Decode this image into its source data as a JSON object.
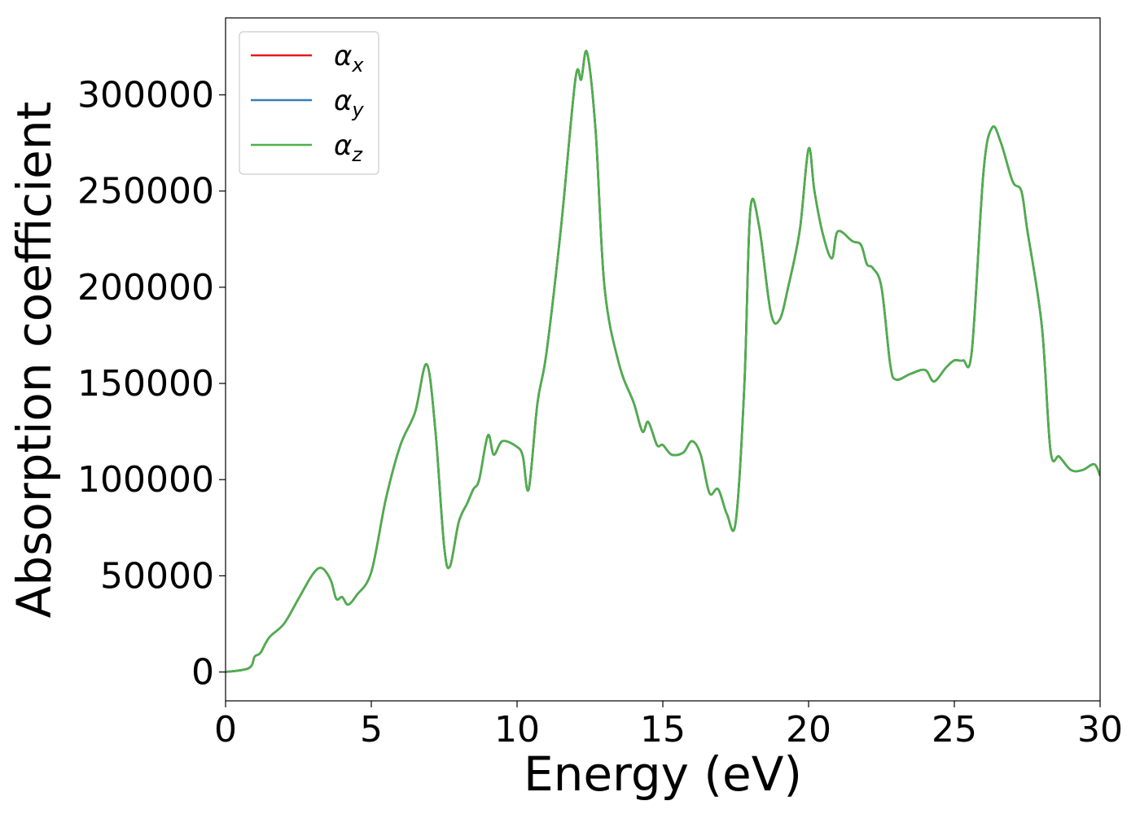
{
  "chart_data": {
    "type": "line",
    "xlabel": "Energy (eV)",
    "ylabel": "Absorption coefficient",
    "xlim": [
      0,
      30
    ],
    "ylim": [
      -15000,
      340000
    ],
    "x_ticks": [
      0,
      5,
      10,
      15,
      20,
      25,
      30
    ],
    "y_ticks": [
      0,
      50000,
      100000,
      150000,
      200000,
      250000,
      300000
    ],
    "x_tick_labels": [
      "0",
      "5",
      "10",
      "15",
      "20",
      "25",
      "30"
    ],
    "y_tick_labels": [
      "0",
      "50000",
      "100000",
      "150000",
      "200000",
      "250000",
      "300000"
    ],
    "grid": false,
    "legend_position": "top-left",
    "x": [
      0,
      0.8,
      1.0,
      1.2,
      1.5,
      2.0,
      2.5,
      3.0,
      3.3,
      3.6,
      3.8,
      4.0,
      4.2,
      4.5,
      5.0,
      5.5,
      6.0,
      6.5,
      6.9,
      7.2,
      7.5,
      7.7,
      8.0,
      8.3,
      8.5,
      8.7,
      9.0,
      9.2,
      9.5,
      10.0,
      10.2,
      10.4,
      10.7,
      11.0,
      11.5,
      12.0,
      12.2,
      12.4,
      12.7,
      13.0,
      13.5,
      14.0,
      14.3,
      14.5,
      14.8,
      15.0,
      15.3,
      15.7,
      16.0,
      16.3,
      16.6,
      16.9,
      17.2,
      17.5,
      17.8,
      18.0,
      18.3,
      18.7,
      19.0,
      19.3,
      19.7,
      20.0,
      20.2,
      20.5,
      20.8,
      21.0,
      21.5,
      21.8,
      22.0,
      22.2,
      22.5,
      22.8,
      23.0,
      23.5,
      24.0,
      24.3,
      24.7,
      25.0,
      25.3,
      25.6,
      26.0,
      26.3,
      26.6,
      27.0,
      27.3,
      27.5,
      28.0,
      28.3,
      28.6,
      29.0,
      29.4,
      29.8,
      30.0
    ],
    "series": [
      {
        "name": "α_x",
        "color": "#e41a1c",
        "values": [
          0,
          2000,
          8000,
          10000,
          18000,
          25000,
          38000,
          51000,
          54000,
          48000,
          38000,
          39000,
          35000,
          40000,
          52000,
          90000,
          118000,
          135000,
          160000,
          125000,
          65000,
          55000,
          78000,
          88000,
          95000,
          100000,
          123000,
          113000,
          120000,
          117000,
          112000,
          95000,
          140000,
          165000,
          230000,
          308000,
          308000,
          322000,
          280000,
          200000,
          160000,
          140000,
          125000,
          130000,
          118000,
          118000,
          113000,
          114000,
          120000,
          113000,
          93000,
          95000,
          82000,
          78000,
          150000,
          240000,
          232000,
          187000,
          183000,
          200000,
          230000,
          272000,
          250000,
          227000,
          215000,
          229000,
          224000,
          222000,
          212000,
          210000,
          200000,
          160000,
          152000,
          155000,
          157000,
          151000,
          158000,
          162000,
          162000,
          167000,
          260000,
          283000,
          275000,
          255000,
          250000,
          230000,
          180000,
          115000,
          112000,
          105000,
          105000,
          108000,
          102000
        ]
      },
      {
        "name": "α_y",
        "color": "#377eb8",
        "values": [
          0,
          2000,
          8000,
          10000,
          18000,
          25000,
          38000,
          51000,
          54000,
          48000,
          38000,
          39000,
          35000,
          40000,
          52000,
          90000,
          118000,
          135000,
          160000,
          125000,
          65000,
          55000,
          78000,
          88000,
          95000,
          100000,
          123000,
          113000,
          120000,
          117000,
          112000,
          95000,
          140000,
          165000,
          230000,
          308000,
          308000,
          322000,
          280000,
          200000,
          160000,
          140000,
          125000,
          130000,
          118000,
          118000,
          113000,
          114000,
          120000,
          113000,
          93000,
          95000,
          82000,
          78000,
          150000,
          240000,
          232000,
          187000,
          183000,
          200000,
          230000,
          272000,
          250000,
          227000,
          215000,
          229000,
          224000,
          222000,
          212000,
          210000,
          200000,
          160000,
          152000,
          155000,
          157000,
          151000,
          158000,
          162000,
          162000,
          167000,
          260000,
          283000,
          275000,
          255000,
          250000,
          230000,
          180000,
          115000,
          112000,
          105000,
          105000,
          108000,
          102000
        ]
      },
      {
        "name": "α_z",
        "color": "#4daf4a",
        "values": [
          0,
          2000,
          8000,
          10000,
          18000,
          25000,
          38000,
          51000,
          54000,
          48000,
          38000,
          39000,
          35000,
          40000,
          52000,
          90000,
          118000,
          135000,
          160000,
          125000,
          65000,
          55000,
          78000,
          88000,
          95000,
          100000,
          123000,
          113000,
          120000,
          117000,
          112000,
          95000,
          140000,
          165000,
          230000,
          308000,
          308000,
          322000,
          280000,
          200000,
          160000,
          140000,
          125000,
          130000,
          118000,
          118000,
          113000,
          114000,
          120000,
          113000,
          93000,
          95000,
          82000,
          78000,
          150000,
          240000,
          232000,
          187000,
          183000,
          200000,
          230000,
          272000,
          250000,
          227000,
          215000,
          229000,
          224000,
          222000,
          212000,
          210000,
          200000,
          160000,
          152000,
          155000,
          157000,
          151000,
          158000,
          162000,
          162000,
          167000,
          260000,
          283000,
          275000,
          255000,
          250000,
          230000,
          180000,
          115000,
          112000,
          105000,
          105000,
          108000,
          102000
        ]
      }
    ],
    "legend": [
      {
        "symbol": "α",
        "sub": "x",
        "color": "#e41a1c"
      },
      {
        "symbol": "α",
        "sub": "y",
        "color": "#377eb8"
      },
      {
        "symbol": "α",
        "sub": "z",
        "color": "#4daf4a"
      }
    ]
  }
}
